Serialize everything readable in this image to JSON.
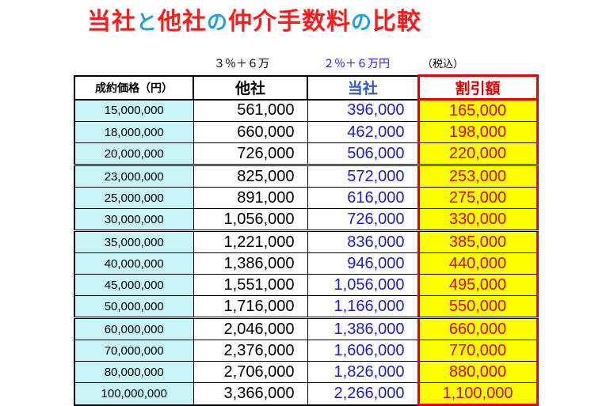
{
  "title": {
    "part1": "当社",
    "part2": "と",
    "part3": "他社",
    "part4": "の",
    "part5": "仲介手数料",
    "part6": "の",
    "part7": "比較"
  },
  "subtitles": {
    "other_rate": "３％＋６万",
    "our_rate": "２％＋６万円",
    "tax_note": "（税込）"
  },
  "table": {
    "headers": [
      "成約価格（円）",
      "他社",
      "当社",
      "割引額"
    ],
    "rows": [
      [
        "15,000,000",
        "561,000",
        "396,000",
        "165,000"
      ],
      [
        "18,000,000",
        "660,000",
        "462,000",
        "198,000"
      ],
      [
        "20,000,000",
        "726,000",
        "506,000",
        "220,000"
      ],
      [
        "23,000,000",
        "825,000",
        "572,000",
        "253,000"
      ],
      [
        "25,000,000",
        "891,000",
        "616,000",
        "275,000"
      ],
      [
        "30,000,000",
        "1,056,000",
        "726,000",
        "330,000"
      ],
      [
        "35,000,000",
        "1,221,000",
        "836,000",
        "385,000"
      ],
      [
        "40,000,000",
        "1,386,000",
        "946,000",
        "440,000"
      ],
      [
        "45,000,000",
        "1,551,000",
        "1,056,000",
        "495,000"
      ],
      [
        "50,000,000",
        "1,716,000",
        "1,166,000",
        "550,000"
      ],
      [
        "60,000,000",
        "2,046,000",
        "1,386,000",
        "660,000"
      ],
      [
        "70,000,000",
        "2,376,000",
        "1,606,000",
        "770,000"
      ],
      [
        "80,000,000",
        "2,706,000",
        "1,826,000",
        "880,000"
      ],
      [
        "100,000,000",
        "3,366,000",
        "2,266,000",
        "1,100,000"
      ]
    ]
  },
  "colors": {
    "title_red": "#ff1a1a",
    "title_blue": "#1fa0e6",
    "price_bg": "#c8f4f7",
    "discount_bg": "#ffff00",
    "discount_text": "#e00000",
    "ours_text": "#1c1ccc"
  }
}
